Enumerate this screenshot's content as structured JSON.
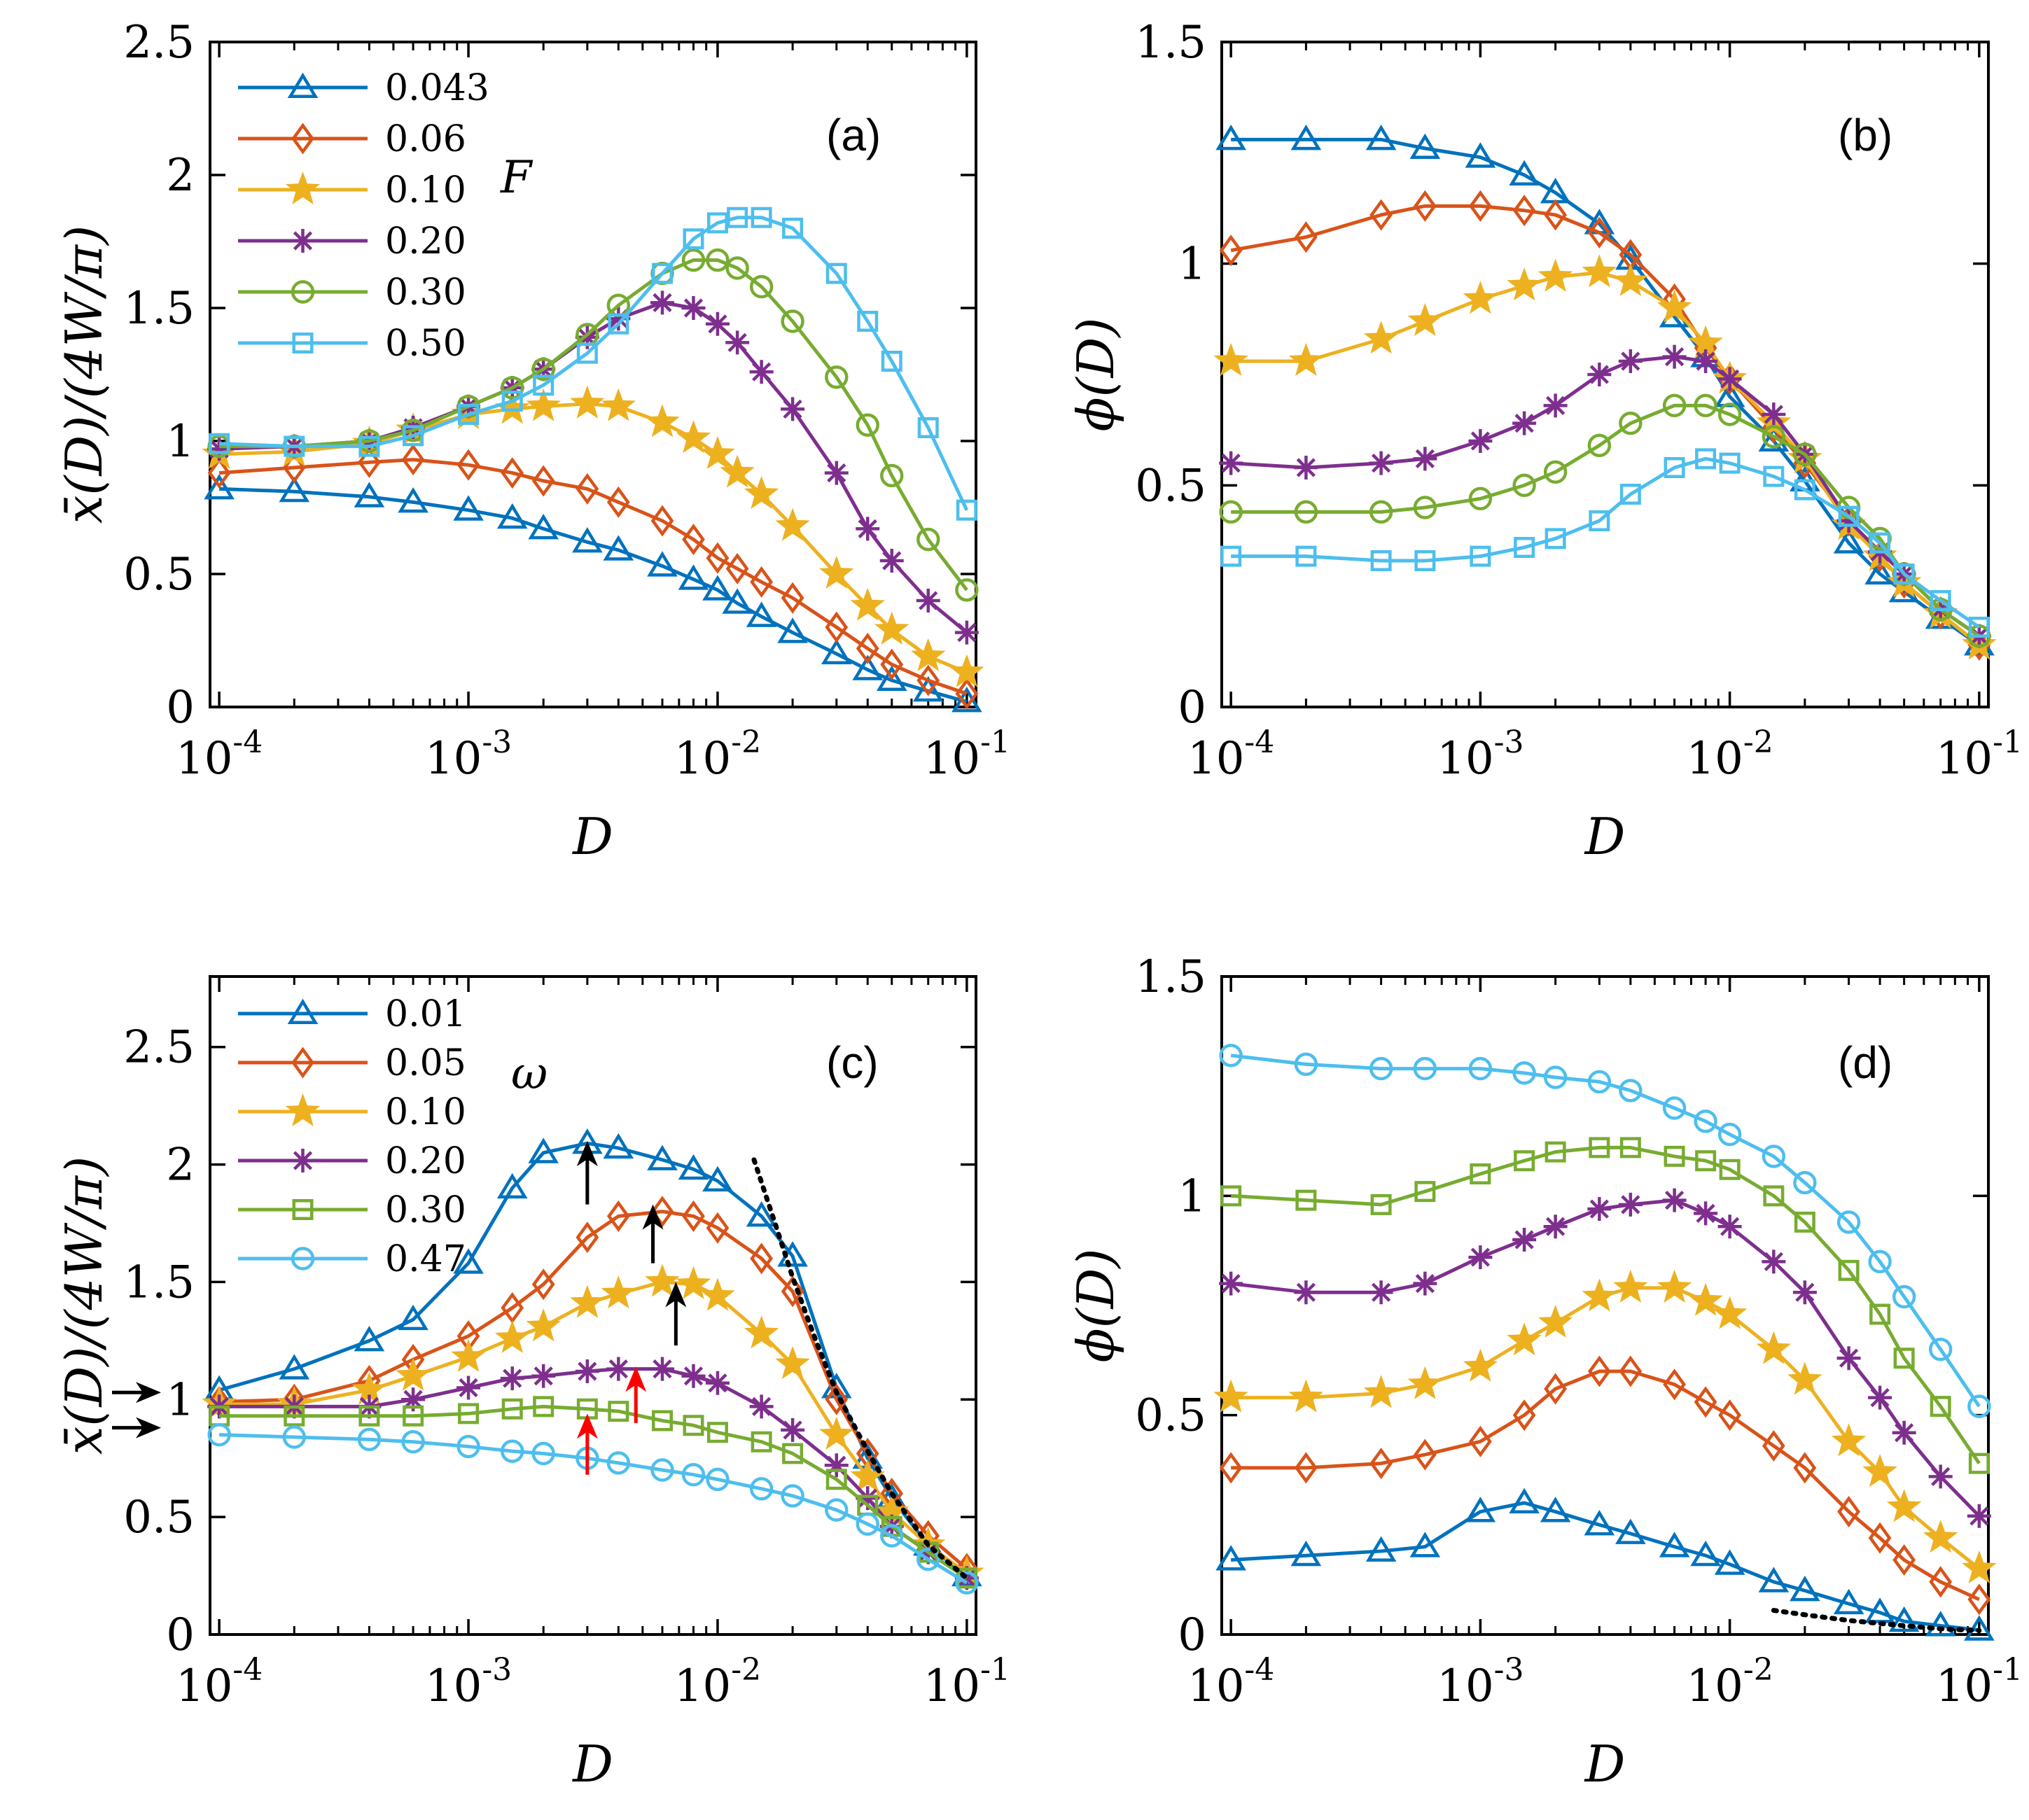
{
  "colors": {
    "blue": "#0072BD",
    "orange": "#D95319",
    "yellow": "#EDB120",
    "purple": "#7E2F8E",
    "green": "#77AC30",
    "cyan": "#4DBEEE",
    "black": "#000000",
    "red": "#FF0000"
  },
  "chart_data": [
    {
      "id": "a",
      "type": "line",
      "panel_label": "(a)",
      "xlabel": "D",
      "ylabel": "x̄(D)/(4W/π)",
      "xscale": "log",
      "xlim": [
        0.0001,
        0.1
      ],
      "ylim": [
        0,
        2.5
      ],
      "xticks": [
        0.0001,
        0.001,
        0.01,
        0.1
      ],
      "xtick_labels": [
        {
          "base": "10",
          "exp": "-4"
        },
        {
          "base": "10",
          "exp": "-3"
        },
        {
          "base": "10",
          "exp": "-2"
        },
        {
          "base": "10",
          "exp": "-1"
        }
      ],
      "yticks": [
        0,
        0.5,
        1,
        1.5,
        2,
        2.5
      ],
      "ytick_labels": [
        "0",
        "0.5",
        "1",
        "1.5",
        "2",
        "2.5"
      ],
      "legend_title": "F",
      "legend_position": "top-left",
      "x": [
        0.0001,
        0.0002,
        0.0004,
        0.0006,
        0.001,
        0.0015,
        0.002,
        0.003,
        0.004,
        0.006,
        0.008,
        0.01,
        0.012,
        0.015,
        0.02,
        0.03,
        0.04,
        0.05,
        0.07,
        0.1
      ],
      "series": [
        {
          "name": "0.043",
          "marker": "triangle",
          "color": "#0072BD",
          "values": [
            0.82,
            0.81,
            0.79,
            0.77,
            0.74,
            0.71,
            0.67,
            0.62,
            0.59,
            0.53,
            0.48,
            0.44,
            0.39,
            0.34,
            0.28,
            0.2,
            0.14,
            0.1,
            0.06,
            0.02
          ]
        },
        {
          "name": "0.06",
          "marker": "diamond",
          "color": "#D95319",
          "values": [
            0.88,
            0.9,
            0.92,
            0.93,
            0.91,
            0.88,
            0.85,
            0.82,
            0.77,
            0.7,
            0.63,
            0.56,
            0.52,
            0.47,
            0.41,
            0.3,
            0.22,
            0.16,
            0.1,
            0.05
          ]
        },
        {
          "name": "0.10",
          "marker": "star",
          "color": "#EDB120",
          "values": [
            0.95,
            0.96,
            0.99,
            1.04,
            1.1,
            1.12,
            1.13,
            1.14,
            1.13,
            1.07,
            1.01,
            0.95,
            0.88,
            0.8,
            0.68,
            0.5,
            0.38,
            0.29,
            0.19,
            0.13
          ]
        },
        {
          "name": "0.20",
          "marker": "asterisk",
          "color": "#7E2F8E",
          "values": [
            0.97,
            0.98,
            1.0,
            1.05,
            1.13,
            1.2,
            1.27,
            1.39,
            1.46,
            1.52,
            1.5,
            1.44,
            1.37,
            1.26,
            1.12,
            0.88,
            0.67,
            0.55,
            0.4,
            0.28
          ]
        },
        {
          "name": "0.30",
          "marker": "circle",
          "color": "#77AC30",
          "values": [
            0.98,
            0.98,
            1.0,
            1.04,
            1.13,
            1.2,
            1.27,
            1.4,
            1.51,
            1.63,
            1.68,
            1.68,
            1.65,
            1.58,
            1.45,
            1.24,
            1.06,
            0.87,
            0.63,
            0.44
          ]
        },
        {
          "name": "0.50",
          "marker": "square",
          "color": "#4DBEEE",
          "values": [
            0.99,
            0.98,
            0.98,
            1.02,
            1.1,
            1.15,
            1.21,
            1.33,
            1.44,
            1.63,
            1.76,
            1.82,
            1.84,
            1.84,
            1.8,
            1.63,
            1.45,
            1.3,
            1.05,
            0.74
          ]
        }
      ],
      "annotations": []
    },
    {
      "id": "b",
      "type": "line",
      "panel_label": "(b)",
      "xlabel": "D",
      "ylabel": "ϕ(D)",
      "xscale": "log",
      "xlim": [
        0.0001,
        0.1
      ],
      "ylim": [
        0,
        1.5
      ],
      "xticks": [
        0.0001,
        0.001,
        0.01,
        0.1
      ],
      "xtick_labels": [
        {
          "base": "10",
          "exp": "-4"
        },
        {
          "base": "10",
          "exp": "-3"
        },
        {
          "base": "10",
          "exp": "-2"
        },
        {
          "base": "10",
          "exp": "-1"
        }
      ],
      "yticks": [
        0,
        0.5,
        1,
        1.5
      ],
      "ytick_labels": [
        "0",
        "0.5",
        "1",
        "1.5"
      ],
      "x": [
        0.0001,
        0.0002,
        0.0004,
        0.0006,
        0.001,
        0.0015,
        0.002,
        0.003,
        0.004,
        0.006,
        0.008,
        0.01,
        0.015,
        0.02,
        0.03,
        0.04,
        0.05,
        0.07,
        0.1
      ],
      "series": [
        {
          "name": "0.043",
          "marker": "triangle",
          "color": "#0072BD",
          "values": [
            1.28,
            1.28,
            1.28,
            1.26,
            1.24,
            1.2,
            1.16,
            1.09,
            1.01,
            0.88,
            0.79,
            0.7,
            0.6,
            0.51,
            0.37,
            0.3,
            0.26,
            0.2,
            0.14
          ]
        },
        {
          "name": "0.06",
          "marker": "diamond",
          "color": "#D95319",
          "values": [
            1.03,
            1.06,
            1.11,
            1.13,
            1.13,
            1.12,
            1.11,
            1.07,
            1.02,
            0.92,
            0.81,
            0.74,
            0.63,
            0.55,
            0.42,
            0.34,
            0.28,
            0.21,
            0.14
          ]
        },
        {
          "name": "0.10",
          "marker": "star",
          "color": "#EDB120",
          "values": [
            0.78,
            0.78,
            0.83,
            0.87,
            0.92,
            0.95,
            0.97,
            0.98,
            0.96,
            0.9,
            0.82,
            0.74,
            0.64,
            0.56,
            0.41,
            0.34,
            0.28,
            0.21,
            0.14
          ]
        },
        {
          "name": "0.20",
          "marker": "asterisk",
          "color": "#7E2F8E",
          "values": [
            0.55,
            0.54,
            0.55,
            0.56,
            0.6,
            0.64,
            0.68,
            0.75,
            0.78,
            0.79,
            0.78,
            0.74,
            0.66,
            0.57,
            0.42,
            0.35,
            0.3,
            0.22,
            0.16
          ]
        },
        {
          "name": "0.30",
          "marker": "circle",
          "color": "#77AC30",
          "values": [
            0.44,
            0.44,
            0.44,
            0.45,
            0.47,
            0.5,
            0.53,
            0.59,
            0.64,
            0.68,
            0.68,
            0.66,
            0.61,
            0.57,
            0.45,
            0.38,
            0.3,
            0.22,
            0.16
          ]
        },
        {
          "name": "0.50",
          "marker": "square",
          "color": "#4DBEEE",
          "values": [
            0.34,
            0.34,
            0.33,
            0.33,
            0.34,
            0.36,
            0.38,
            0.42,
            0.48,
            0.54,
            0.56,
            0.55,
            0.52,
            0.49,
            0.43,
            0.37,
            0.3,
            0.24,
            0.18
          ]
        }
      ],
      "annotations": []
    },
    {
      "id": "c",
      "type": "line",
      "panel_label": "(c)",
      "xlabel": "D",
      "ylabel": "x̄(D)/(4W/π)",
      "xscale": "log",
      "xlim": [
        0.0001,
        0.1
      ],
      "ylim": [
        0,
        2.8
      ],
      "xticks": [
        0.0001,
        0.001,
        0.01,
        0.1
      ],
      "xtick_labels": [
        {
          "base": "10",
          "exp": "-4"
        },
        {
          "base": "10",
          "exp": "-3"
        },
        {
          "base": "10",
          "exp": "-2"
        },
        {
          "base": "10",
          "exp": "-1"
        }
      ],
      "yticks": [
        0,
        0.5,
        1,
        1.5,
        2,
        2.5
      ],
      "ytick_labels": [
        "0",
        "0.5",
        "1",
        "1.5",
        "2",
        "2.5"
      ],
      "legend_title": "ω",
      "legend_position": "top-left",
      "x": [
        0.0001,
        0.0002,
        0.0004,
        0.0006,
        0.001,
        0.0015,
        0.002,
        0.003,
        0.004,
        0.006,
        0.008,
        0.01,
        0.015,
        0.02,
        0.03,
        0.04,
        0.05,
        0.07,
        0.1
      ],
      "series": [
        {
          "name": "0.01",
          "marker": "triangle",
          "color": "#0072BD",
          "values": [
            1.04,
            1.13,
            1.25,
            1.34,
            1.58,
            1.9,
            2.05,
            2.09,
            2.07,
            2.02,
            1.98,
            1.93,
            1.78,
            1.61,
            1.05,
            0.75,
            0.58,
            0.38,
            0.25
          ]
        },
        {
          "name": "0.05",
          "marker": "diamond",
          "color": "#D95319",
          "values": [
            0.99,
            1.0,
            1.08,
            1.17,
            1.27,
            1.39,
            1.49,
            1.69,
            1.78,
            1.8,
            1.78,
            1.73,
            1.6,
            1.46,
            1.0,
            0.77,
            0.6,
            0.42,
            0.28
          ]
        },
        {
          "name": "0.10",
          "marker": "star",
          "color": "#EDB120",
          "values": [
            0.98,
            0.98,
            1.04,
            1.1,
            1.18,
            1.26,
            1.31,
            1.41,
            1.45,
            1.5,
            1.49,
            1.44,
            1.28,
            1.15,
            0.85,
            0.67,
            0.52,
            0.38,
            0.26
          ]
        },
        {
          "name": "0.20",
          "marker": "asterisk",
          "color": "#7E2F8E",
          "values": [
            0.97,
            0.97,
            0.97,
            1.0,
            1.05,
            1.09,
            1.1,
            1.12,
            1.13,
            1.13,
            1.1,
            1.07,
            0.97,
            0.87,
            0.72,
            0.58,
            0.46,
            0.35,
            0.24
          ]
        },
        {
          "name": "0.30",
          "marker": "square",
          "color": "#77AC30",
          "values": [
            0.93,
            0.93,
            0.93,
            0.93,
            0.94,
            0.96,
            0.97,
            0.96,
            0.95,
            0.91,
            0.89,
            0.86,
            0.82,
            0.77,
            0.66,
            0.55,
            0.46,
            0.35,
            0.24
          ]
        },
        {
          "name": "0.47",
          "marker": "circle",
          "color": "#4DBEEE",
          "values": [
            0.85,
            0.84,
            0.83,
            0.82,
            0.8,
            0.78,
            0.77,
            0.75,
            0.73,
            0.7,
            0.68,
            0.66,
            0.62,
            0.59,
            0.53,
            0.47,
            0.42,
            0.32,
            0.22
          ]
        }
      ],
      "annotations": [
        {
          "kind": "dotted-curve",
          "color": "#000000",
          "points": [
            [
              0.014,
              2.02
            ],
            [
              0.017,
              1.75
            ],
            [
              0.02,
              1.52
            ],
            [
              0.025,
              1.24
            ],
            [
              0.03,
              1.03
            ],
            [
              0.04,
              0.78
            ],
            [
              0.05,
              0.6
            ],
            [
              0.07,
              0.38
            ],
            [
              0.1,
              0.24
            ]
          ]
        },
        {
          "kind": "arrow-up",
          "color": "#000000",
          "x": 0.003,
          "from": 1.83,
          "to": 2.1
        },
        {
          "kind": "arrow-up",
          "color": "#000000",
          "x": 0.0055,
          "from": 1.58,
          "to": 1.83
        },
        {
          "kind": "arrow-up",
          "color": "#000000",
          "x": 0.0068,
          "from": 1.23,
          "to": 1.5
        },
        {
          "kind": "arrow-up",
          "color": "#FF0000",
          "x": 0.003,
          "from": 0.68,
          "to": 0.94
        },
        {
          "kind": "arrow-up",
          "color": "#FF0000",
          "x": 0.0047,
          "from": 0.9,
          "to": 1.14
        },
        {
          "kind": "arrow-right-outside",
          "color": "#000000",
          "y": 1.03
        },
        {
          "kind": "arrow-right-outside",
          "color": "#000000",
          "y": 0.88
        }
      ]
    },
    {
      "id": "d",
      "type": "line",
      "panel_label": "(d)",
      "xlabel": "D",
      "ylabel": "ϕ(D)",
      "xscale": "log",
      "xlim": [
        0.0001,
        0.1
      ],
      "ylim": [
        0,
        1.5
      ],
      "xticks": [
        0.0001,
        0.001,
        0.01,
        0.1
      ],
      "xtick_labels": [
        {
          "base": "10",
          "exp": "-4"
        },
        {
          "base": "10",
          "exp": "-3"
        },
        {
          "base": "10",
          "exp": "-2"
        },
        {
          "base": "10",
          "exp": "-1"
        }
      ],
      "yticks": [
        0,
        0.5,
        1,
        1.5
      ],
      "ytick_labels": [
        "0",
        "0.5",
        "1",
        "1.5"
      ],
      "x": [
        0.0001,
        0.0002,
        0.0004,
        0.0006,
        0.001,
        0.0015,
        0.002,
        0.003,
        0.004,
        0.006,
        0.008,
        0.01,
        0.015,
        0.02,
        0.03,
        0.04,
        0.05,
        0.07,
        0.1
      ],
      "series": [
        {
          "name": "0.01",
          "marker": "triangle",
          "color": "#0072BD",
          "values": [
            0.17,
            0.18,
            0.19,
            0.2,
            0.28,
            0.3,
            0.28,
            0.25,
            0.23,
            0.2,
            0.18,
            0.16,
            0.12,
            0.1,
            0.07,
            0.05,
            0.03,
            0.02,
            0.01
          ]
        },
        {
          "name": "0.05",
          "marker": "diamond",
          "color": "#D95319",
          "values": [
            0.38,
            0.38,
            0.39,
            0.41,
            0.44,
            0.5,
            0.56,
            0.6,
            0.6,
            0.57,
            0.53,
            0.5,
            0.43,
            0.38,
            0.28,
            0.22,
            0.17,
            0.12,
            0.08
          ]
        },
        {
          "name": "0.10",
          "marker": "star",
          "color": "#EDB120",
          "values": [
            0.54,
            0.54,
            0.55,
            0.57,
            0.61,
            0.67,
            0.71,
            0.77,
            0.79,
            0.79,
            0.76,
            0.73,
            0.65,
            0.58,
            0.44,
            0.37,
            0.29,
            0.22,
            0.15
          ]
        },
        {
          "name": "0.20",
          "marker": "asterisk",
          "color": "#7E2F8E",
          "values": [
            0.8,
            0.78,
            0.78,
            0.8,
            0.86,
            0.9,
            0.93,
            0.97,
            0.98,
            0.99,
            0.96,
            0.93,
            0.85,
            0.78,
            0.63,
            0.54,
            0.46,
            0.36,
            0.27
          ]
        },
        {
          "name": "0.30",
          "marker": "square",
          "color": "#77AC30",
          "values": [
            1.0,
            0.99,
            0.98,
            1.01,
            1.05,
            1.08,
            1.1,
            1.11,
            1.11,
            1.09,
            1.08,
            1.06,
            1.0,
            0.94,
            0.83,
            0.73,
            0.63,
            0.52,
            0.39
          ]
        },
        {
          "name": "0.47",
          "marker": "circle",
          "color": "#4DBEEE",
          "values": [
            1.32,
            1.3,
            1.29,
            1.29,
            1.29,
            1.28,
            1.27,
            1.26,
            1.24,
            1.2,
            1.17,
            1.14,
            1.09,
            1.03,
            0.94,
            0.85,
            0.77,
            0.65,
            0.52
          ]
        }
      ],
      "annotations": [
        {
          "kind": "dotted-curve",
          "color": "#000000",
          "points": [
            [
              0.015,
              0.055
            ],
            [
              0.02,
              0.045
            ],
            [
              0.03,
              0.032
            ],
            [
              0.05,
              0.02
            ],
            [
              0.07,
              0.013
            ],
            [
              0.1,
              0.009
            ]
          ]
        }
      ]
    }
  ]
}
